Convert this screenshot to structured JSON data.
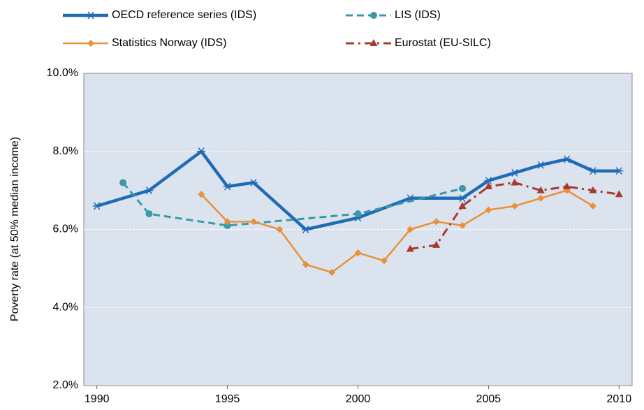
{
  "chart_data": {
    "type": "line",
    "y_label": "Poverty rate (at 50% median income)",
    "xlim": [
      1989.5,
      2010.5
    ],
    "xticks": [
      1990,
      1995,
      2000,
      2005,
      2010
    ],
    "ylim": [
      2,
      10
    ],
    "yticks": [
      {
        "value": 2,
        "label": "2.0%"
      },
      {
        "value": 4,
        "label": "4.0%"
      },
      {
        "value": 6,
        "label": "6.0%"
      },
      {
        "value": 8,
        "label": "8.0%"
      },
      {
        "value": 10,
        "label": "10.0%"
      }
    ],
    "grid": true,
    "series": [
      {
        "name": "OECD reference series (IDS)",
        "color": "#1f6bb5",
        "marker": "star",
        "line_style": "solid",
        "x": [
          1990,
          1992,
          1994,
          1995,
          1996,
          1998,
          2000,
          2002,
          2004,
          2005,
          2006,
          2007,
          2008,
          2009,
          2010
        ],
        "values": [
          6.6,
          7.0,
          8.0,
          7.1,
          7.2,
          6.0,
          6.3,
          6.8,
          6.8,
          7.25,
          7.45,
          7.65,
          7.8,
          7.5,
          7.5
        ]
      },
      {
        "name": "LIS (IDS)",
        "color": "#3a98a8",
        "marker": "circle",
        "line_style": "dashed",
        "x": [
          1991,
          1992,
          1995,
          2000,
          2004
        ],
        "values": [
          7.2,
          6.4,
          6.1,
          6.4,
          7.05
        ]
      },
      {
        "name": "Statistics Norway (IDS)",
        "color": "#e8913a",
        "marker": "diamond",
        "line_style": "solid",
        "x": [
          1994,
          1995,
          1996,
          1997,
          1998,
          1999,
          2000,
          2001,
          2002,
          2003,
          2004,
          2005,
          2006,
          2007,
          2008,
          2009
        ],
        "values": [
          6.9,
          6.2,
          6.2,
          6.0,
          5.1,
          4.9,
          5.4,
          5.2,
          6.0,
          6.2,
          6.1,
          6.5,
          6.6,
          6.8,
          7.0,
          6.6
        ]
      },
      {
        "name": "Eurostat (EU-SILC)",
        "color": "#a63a32",
        "marker": "triangle",
        "line_style": "dashdot",
        "x": [
          2002,
          2003,
          2004,
          2005,
          2006,
          2007,
          2008,
          2009,
          2010
        ],
        "values": [
          5.5,
          5.6,
          6.6,
          7.1,
          7.2,
          7.0,
          7.1,
          7.0,
          6.9
        ]
      }
    ]
  }
}
